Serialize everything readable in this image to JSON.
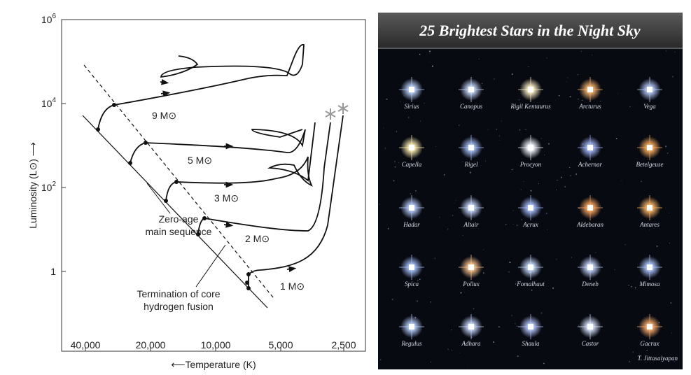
{
  "hr_diagram": {
    "y_axis_label": "Luminosity (L⊙) ⟶",
    "x_axis_label": "⟵Temperature (K)",
    "y_tick_labels": [
      {
        "base": "10",
        "exp": "6"
      },
      {
        "base": "10",
        "exp": "4"
      },
      {
        "base": "10",
        "exp": "2"
      },
      {
        "base": "1"
      }
    ],
    "x_tick_labels": [
      "40,000",
      "20,000",
      "10,000",
      "5,000",
      "2,500"
    ],
    "mass_labels": [
      "9 M⊙",
      "5 M⊙",
      "3 M⊙",
      "2 M⊙",
      "1 M⊙"
    ],
    "annotations": [
      "Zero-age",
      "main sequence",
      "Termination of core",
      "hydrogen fusion"
    ]
  },
  "star_panel": {
    "title": "25 Brightest Stars in the Night Sky",
    "credit": "T. Jittasaiyapan",
    "stars": [
      {
        "name": "Sirius",
        "color": "#bcd4ff"
      },
      {
        "name": "Canopus",
        "color": "#c8dcff"
      },
      {
        "name": "Rigil Kentaurus",
        "color": "#fff2c8"
      },
      {
        "name": "Arcturus",
        "color": "#ffb870"
      },
      {
        "name": "Vega",
        "color": "#b8ccff"
      },
      {
        "name": "Capella",
        "color": "#fff0b0"
      },
      {
        "name": "Rigel",
        "color": "#a8c4ff"
      },
      {
        "name": "Procyon",
        "color": "#f4f6ff"
      },
      {
        "name": "Achernar",
        "color": "#a8bcff"
      },
      {
        "name": "Betelgeuse",
        "color": "#ffb060"
      },
      {
        "name": "Hadar",
        "color": "#b8ccff"
      },
      {
        "name": "Altair",
        "color": "#c8d8ff"
      },
      {
        "name": "Acrux",
        "color": "#a8c0ff"
      },
      {
        "name": "Aldebaran",
        "color": "#ffa860"
      },
      {
        "name": "Antares",
        "color": "#ffb868"
      },
      {
        "name": "Spica",
        "color": "#a8c4ff"
      },
      {
        "name": "Pollux",
        "color": "#ffc890"
      },
      {
        "name": "Fomalhaut",
        "color": "#c8dcff"
      },
      {
        "name": "Deneb",
        "color": "#c8d8ff"
      },
      {
        "name": "Mimosa",
        "color": "#b0c8ff"
      },
      {
        "name": "Regulus",
        "color": "#b8d0ff"
      },
      {
        "name": "Adhara",
        "color": "#c8d8ff"
      },
      {
        "name": "Shaula",
        "color": "#b8c8ff"
      },
      {
        "name": "Castor",
        "color": "#d8e4ff"
      },
      {
        "name": "Gacrux",
        "color": "#ffb070"
      }
    ]
  }
}
